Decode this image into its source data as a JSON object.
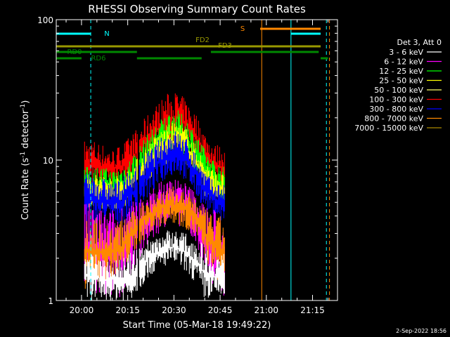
{
  "chart_data": {
    "type": "line",
    "title": "RHESSI Observing Summary Count Rates",
    "xlabel": "Start Time (05-Mar-18 19:49:22)",
    "ylabel_main": "Count Rate (s",
    "ylabel_sup1": "-1",
    "ylabel_mid": " detector",
    "ylabel_sup2": "-1",
    "ylabel_end": ")",
    "yscale": "log",
    "ylim": [
      1,
      100
    ],
    "xlim_minutes": [
      -8,
      43
    ],
    "x_ticks": [
      {
        "label": "20:00",
        "minute": 0
      },
      {
        "label": "20:15",
        "minute": 15
      },
      {
        "label": "20:30",
        "minute": 30
      },
      {
        "label": "20:45",
        "minute": 45
      },
      {
        "label": "21:00",
        "minute": 60
      },
      {
        "label": "21:15",
        "minute": 75
      }
    ],
    "y_ticks": [
      {
        "label": "1",
        "value": 1
      },
      {
        "label": "10",
        "value": 10
      },
      {
        "label": "100",
        "value": 100
      }
    ],
    "legend_title": "Det 3, Att 0",
    "legend_placement": "right",
    "series": [
      {
        "name": "3 - 6 keV",
        "color": "#ffffff"
      },
      {
        "name": "6 - 12 keV",
        "color": "#ff00ff"
      },
      {
        "name": "12 - 25 keV",
        "color": "#00ff00"
      },
      {
        "name": "25 - 50 keV",
        "color": "#ffff00"
      },
      {
        "name": "50 - 100 keV",
        "color": "#ffff66"
      },
      {
        "name": "100 - 300 keV",
        "color": "#ff0000"
      },
      {
        "name": "300 - 800 keV",
        "color": "#0000ff"
      },
      {
        "name": "800 - 7000 keV",
        "color": "#ff8800"
      },
      {
        "name": "7000 - 15000 keV",
        "color": "#aa8800"
      }
    ],
    "flag_bars": [
      {
        "label": "N",
        "color": "#00ffff",
        "segments": [
          [
            -9,
            3
          ],
          [
            68,
            80
          ]
        ],
        "level": 76
      },
      {
        "label": "S",
        "color": "#ff8800",
        "segments": [
          [
            58,
            80
          ]
        ],
        "level": 86
      },
      {
        "label": "FD2",
        "color": "#999900",
        "segments": [
          [
            -9,
            80
          ]
        ],
        "level": 62
      },
      {
        "label": "FD3",
        "color": "#999900",
        "segments": [],
        "level": 62
      },
      {
        "label": "RD0",
        "color": "#008800",
        "segments": [
          [
            -9,
            18
          ],
          [
            42,
            77
          ]
        ],
        "level": 57
      },
      {
        "label": "RD6",
        "color": "#008800",
        "segments": [
          [
            -9,
            0
          ],
          [
            18,
            39
          ],
          [
            80,
            80.5
          ]
        ],
        "level": 52
      }
    ],
    "vertical_lines": [
      {
        "minute": -8.2,
        "color": "#00ffff",
        "style": "solid"
      },
      {
        "minute": 3.0,
        "color": "#00ffff",
        "style": "dashed"
      },
      {
        "minute": 58.5,
        "color": "#ff8800",
        "style": "solid"
      },
      {
        "minute": 68.0,
        "color": "#00ffff",
        "style": "solid"
      },
      {
        "minute": 79.5,
        "color": "#00ffff",
        "style": "dashed"
      },
      {
        "minute": 80.5,
        "color": "#ff8800",
        "style": "dashed"
      }
    ],
    "bands": [
      {
        "series": "100 - 300 keV",
        "color": "#ff0000",
        "lo": [
          6,
          6,
          6,
          6,
          6.5,
          7,
          8,
          9.5,
          11,
          12.5,
          13,
          12,
          10,
          8,
          6.5,
          6
        ],
        "hi": [
          14,
          14,
          13,
          12,
          13,
          15,
          18,
          22,
          26,
          30,
          31,
          27,
          22,
          16,
          13,
          13
        ]
      },
      {
        "series": "12 - 25 keV",
        "color": "#00ff00",
        "lo": [
          5,
          5,
          5,
          5,
          5,
          5.5,
          6.5,
          8,
          9.5,
          11,
          11.5,
          10,
          8,
          6.5,
          5.5,
          5
        ],
        "hi": [
          9,
          9,
          9,
          8.5,
          9,
          10.5,
          13,
          16,
          19,
          22,
          23,
          20,
          16,
          12,
          10,
          9
        ]
      },
      {
        "series": "25 - 50 keV",
        "color": "#ffff00",
        "lo": [
          4.5,
          4.5,
          4.5,
          4.5,
          4.5,
          5,
          6,
          7,
          8.5,
          9.5,
          10,
          9,
          7,
          5.5,
          5,
          4.5
        ],
        "hi": [
          8,
          8,
          8,
          7.5,
          8,
          9,
          11,
          13.5,
          16,
          18,
          19,
          17,
          13,
          10,
          8.5,
          8
        ]
      },
      {
        "series": "300 - 800 keV",
        "color": "#0000ff",
        "lo": [
          3.5,
          3.5,
          3.5,
          3.5,
          3.5,
          3.8,
          4.5,
          5.5,
          6.5,
          7.5,
          8,
          7,
          5.5,
          4.5,
          4,
          3.5
        ],
        "hi": [
          8,
          8,
          7.5,
          7,
          7.5,
          8.5,
          10,
          12,
          14,
          16,
          16.5,
          14.5,
          11.5,
          8.5,
          7,
          7
        ]
      },
      {
        "series": "6 - 12 keV",
        "color": "#ff00ff",
        "lo": [
          1,
          1,
          1,
          1,
          1,
          1.5,
          2,
          2.5,
          3,
          3.5,
          3.5,
          3,
          2.5,
          1.5,
          1,
          1
        ],
        "hi": [
          5,
          5,
          4.5,
          4.5,
          5,
          5,
          5.5,
          6,
          7,
          7.5,
          7.5,
          7,
          6,
          5,
          4.5,
          4.5
        ]
      },
      {
        "series": "800 - 7000 keV",
        "color": "#ff8800",
        "lo": [
          1.2,
          1.2,
          1.3,
          1.4,
          1.5,
          2,
          2.5,
          3,
          3.3,
          3.5,
          3.5,
          3.2,
          2.8,
          2,
          1.5,
          1.2
        ],
        "hi": [
          4.2,
          4,
          3.8,
          3.5,
          3.8,
          4.2,
          5,
          5.5,
          6,
          6.5,
          6.5,
          6,
          5.5,
          4.5,
          4,
          4
        ]
      },
      {
        "series": "3 - 6 keV",
        "color": "#ffffff",
        "lo": [
          1,
          1,
          1,
          1,
          1,
          1,
          1.2,
          1.5,
          1.6,
          1.8,
          1.8,
          1.6,
          1.3,
          1,
          1,
          1
        ],
        "hi": [
          2.2,
          2.2,
          2,
          2,
          2,
          2.2,
          2.5,
          2.8,
          3,
          3.2,
          3.2,
          3,
          2.8,
          2.5,
          2.2,
          2.2
        ]
      }
    ],
    "band_minutes": [
      1,
      4,
      7,
      10,
      13,
      16,
      19,
      22,
      25,
      28,
      31,
      34,
      37,
      40,
      43,
      46
    ],
    "data_span_minutes": [
      1,
      46.5
    ],
    "gap_minutes": [
      18.2,
      18.8
    ]
  },
  "footer": {
    "date_stamp": "2-Sep-2022 18:56"
  }
}
